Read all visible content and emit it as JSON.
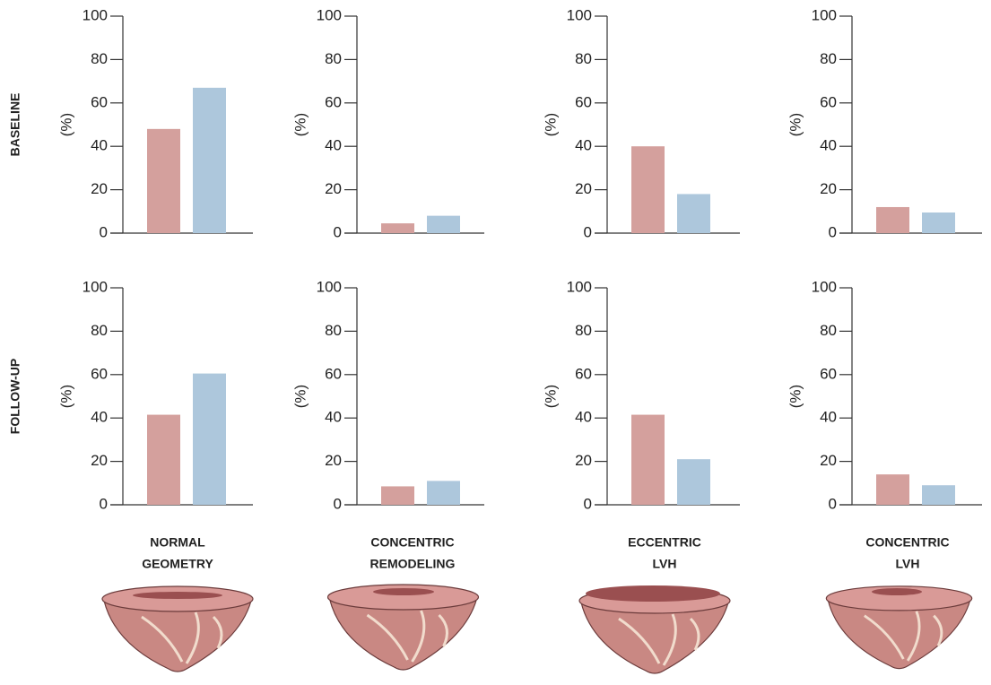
{
  "row_labels": [
    "BASELINE",
    "FOLLOW-UP"
  ],
  "column_labels": [
    [
      "NORMAL",
      "GEOMETRY"
    ],
    [
      "CONCENTRIC",
      "REMODELING"
    ],
    [
      "ECCENTRIC",
      "LVH"
    ],
    [
      "CONCENTRIC",
      "LVH"
    ]
  ],
  "chart_data": [
    {
      "type": "bar",
      "ylabel": "(%)",
      "values": [
        48,
        67
      ],
      "colors": [
        "#d4a09d",
        "#adc7dc"
      ],
      "ylim": [
        0,
        100
      ],
      "yticks": [
        0,
        20,
        40,
        60,
        80,
        100
      ],
      "grid": false
    },
    {
      "type": "bar",
      "ylabel": "(%)",
      "values": [
        4.5,
        8
      ],
      "colors": [
        "#d4a09d",
        "#adc7dc"
      ],
      "ylim": [
        0,
        100
      ],
      "yticks": [
        0,
        20,
        40,
        60,
        80,
        100
      ],
      "grid": false
    },
    {
      "type": "bar",
      "ylabel": "(%)",
      "values": [
        40,
        18
      ],
      "colors": [
        "#d4a09d",
        "#adc7dc"
      ],
      "ylim": [
        0,
        100
      ],
      "yticks": [
        0,
        20,
        40,
        60,
        80,
        100
      ],
      "grid": false
    },
    {
      "type": "bar",
      "ylabel": "(%)",
      "values": [
        12,
        9.5
      ],
      "colors": [
        "#d4a09d",
        "#adc7dc"
      ],
      "ylim": [
        0,
        100
      ],
      "yticks": [
        0,
        20,
        40,
        60,
        80,
        100
      ],
      "grid": false
    },
    {
      "type": "bar",
      "ylabel": "(%)",
      "values": [
        41.5,
        60.5
      ],
      "colors": [
        "#d4a09d",
        "#adc7dc"
      ],
      "ylim": [
        0,
        100
      ],
      "yticks": [
        0,
        20,
        40,
        60,
        80,
        100
      ],
      "grid": false
    },
    {
      "type": "bar",
      "ylabel": "(%)",
      "values": [
        8.5,
        11
      ],
      "colors": [
        "#d4a09d",
        "#adc7dc"
      ],
      "ylim": [
        0,
        100
      ],
      "yticks": [
        0,
        20,
        40,
        60,
        80,
        100
      ],
      "grid": false
    },
    {
      "type": "bar",
      "ylabel": "(%)",
      "values": [
        41.5,
        21
      ],
      "colors": [
        "#d4a09d",
        "#adc7dc"
      ],
      "ylim": [
        0,
        100
      ],
      "yticks": [
        0,
        20,
        40,
        60,
        80,
        100
      ],
      "grid": false
    },
    {
      "type": "bar",
      "ylabel": "(%)",
      "values": [
        14,
        9
      ],
      "colors": [
        "#d4a09d",
        "#adc7dc"
      ],
      "ylim": [
        0,
        100
      ],
      "yticks": [
        0,
        20,
        40,
        60,
        80,
        100
      ],
      "grid": false
    }
  ]
}
